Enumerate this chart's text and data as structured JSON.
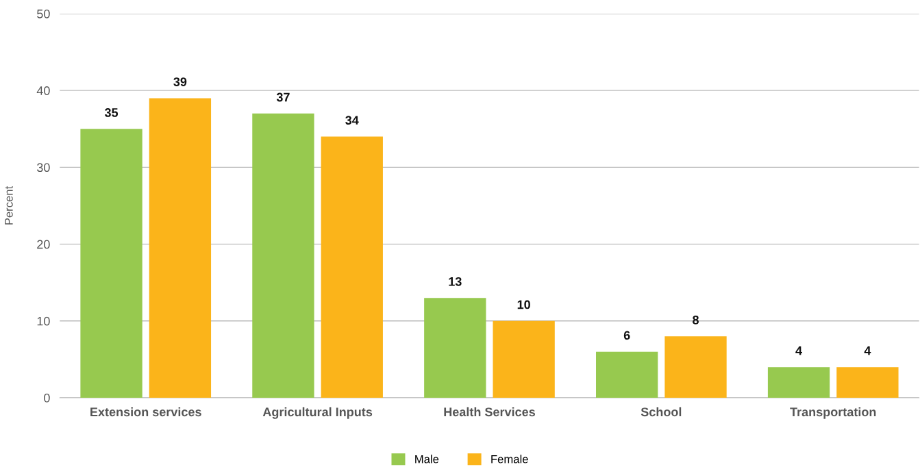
{
  "chart_data": {
    "type": "bar",
    "ylabel": "Percent",
    "categories": [
      "Extension services",
      "Agricultural Inputs",
      "Health Services",
      "School",
      "Transportation"
    ],
    "series": [
      {
        "name": "Male",
        "color": "#97c94f",
        "values": [
          35,
          37,
          13,
          6,
          4
        ]
      },
      {
        "name": "Female",
        "color": "#fbb41a",
        "values": [
          39,
          34,
          10,
          8,
          4
        ]
      }
    ],
    "ylim": [
      0,
      50
    ],
    "yticks": [
      0,
      10,
      20,
      30,
      40,
      50
    ],
    "grid": "y",
    "legend": "bottom",
    "data_labels": true
  }
}
